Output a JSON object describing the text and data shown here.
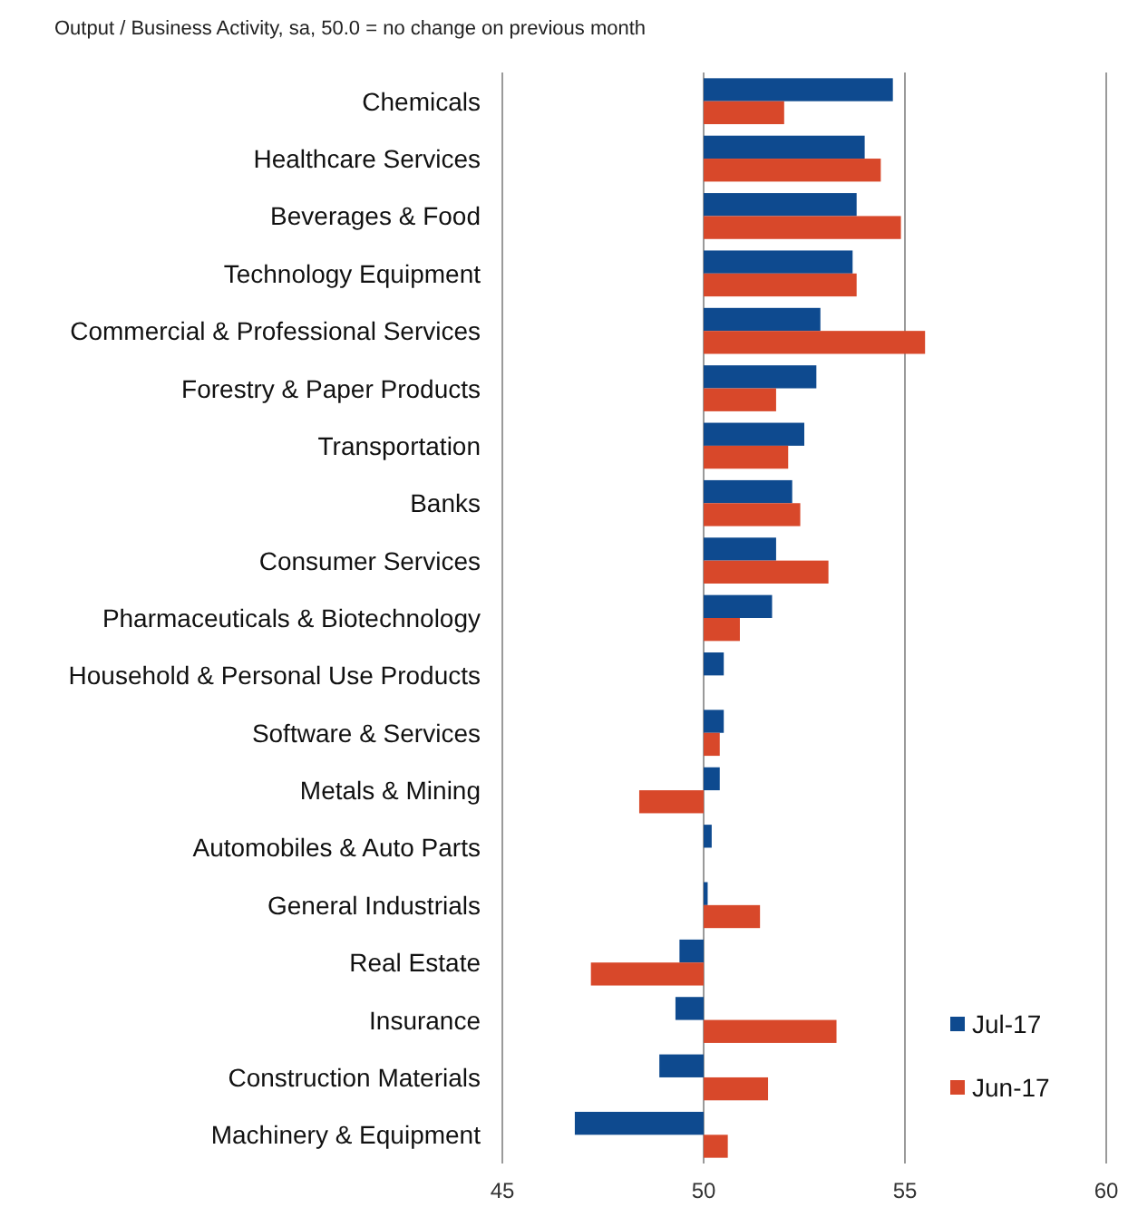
{
  "chart_data": {
    "type": "bar",
    "orientation": "horizontal",
    "title": "Output / Business Activity, sa, 50.0 = no change on previous month",
    "categories": [
      "Chemicals",
      "Healthcare Services",
      "Beverages & Food",
      "Technology Equipment",
      "Commercial & Professional Services",
      "Forestry & Paper Products",
      "Transportation",
      "Banks",
      "Consumer Services",
      "Pharmaceuticals & Biotechnology",
      "Household & Personal Use Products",
      "Software & Services",
      "Metals & Mining",
      "Automobiles & Auto Parts",
      "General Industrials",
      "Real Estate",
      "Insurance",
      "Construction Materials",
      "Machinery & Equipment"
    ],
    "series": [
      {
        "name": "Jul-17",
        "color": "#0e4a8f",
        "base": [
          50,
          50,
          50,
          50,
          50,
          50,
          50,
          50,
          50,
          50,
          50,
          50,
          50,
          50,
          50,
          50,
          50,
          50,
          50
        ],
        "values": [
          4.7,
          4.0,
          3.8,
          3.7,
          2.9,
          2.8,
          2.5,
          2.2,
          1.8,
          1.7,
          0.5,
          0.5,
          0.4,
          0.2,
          0.1,
          -0.6,
          -0.7,
          -1.1,
          -3.2
        ]
      },
      {
        "name": "Jun-17",
        "color": "#d8482a",
        "base": [
          50,
          50,
          50,
          50,
          50,
          50,
          50,
          50,
          50,
          50,
          null,
          50,
          50,
          null,
          50,
          50,
          50,
          50,
          50
        ],
        "values": [
          2.0,
          4.4,
          4.9,
          3.8,
          5.5,
          1.8,
          2.1,
          2.4,
          3.1,
          0.9,
          null,
          0.4,
          -1.6,
          null,
          1.4,
          -2.8,
          3.3,
          1.6,
          0.6
        ]
      }
    ],
    "xlim": [
      45,
      60
    ],
    "xticks": [
      45,
      50,
      55,
      60
    ],
    "grid": "x",
    "legend": "bottom right"
  }
}
